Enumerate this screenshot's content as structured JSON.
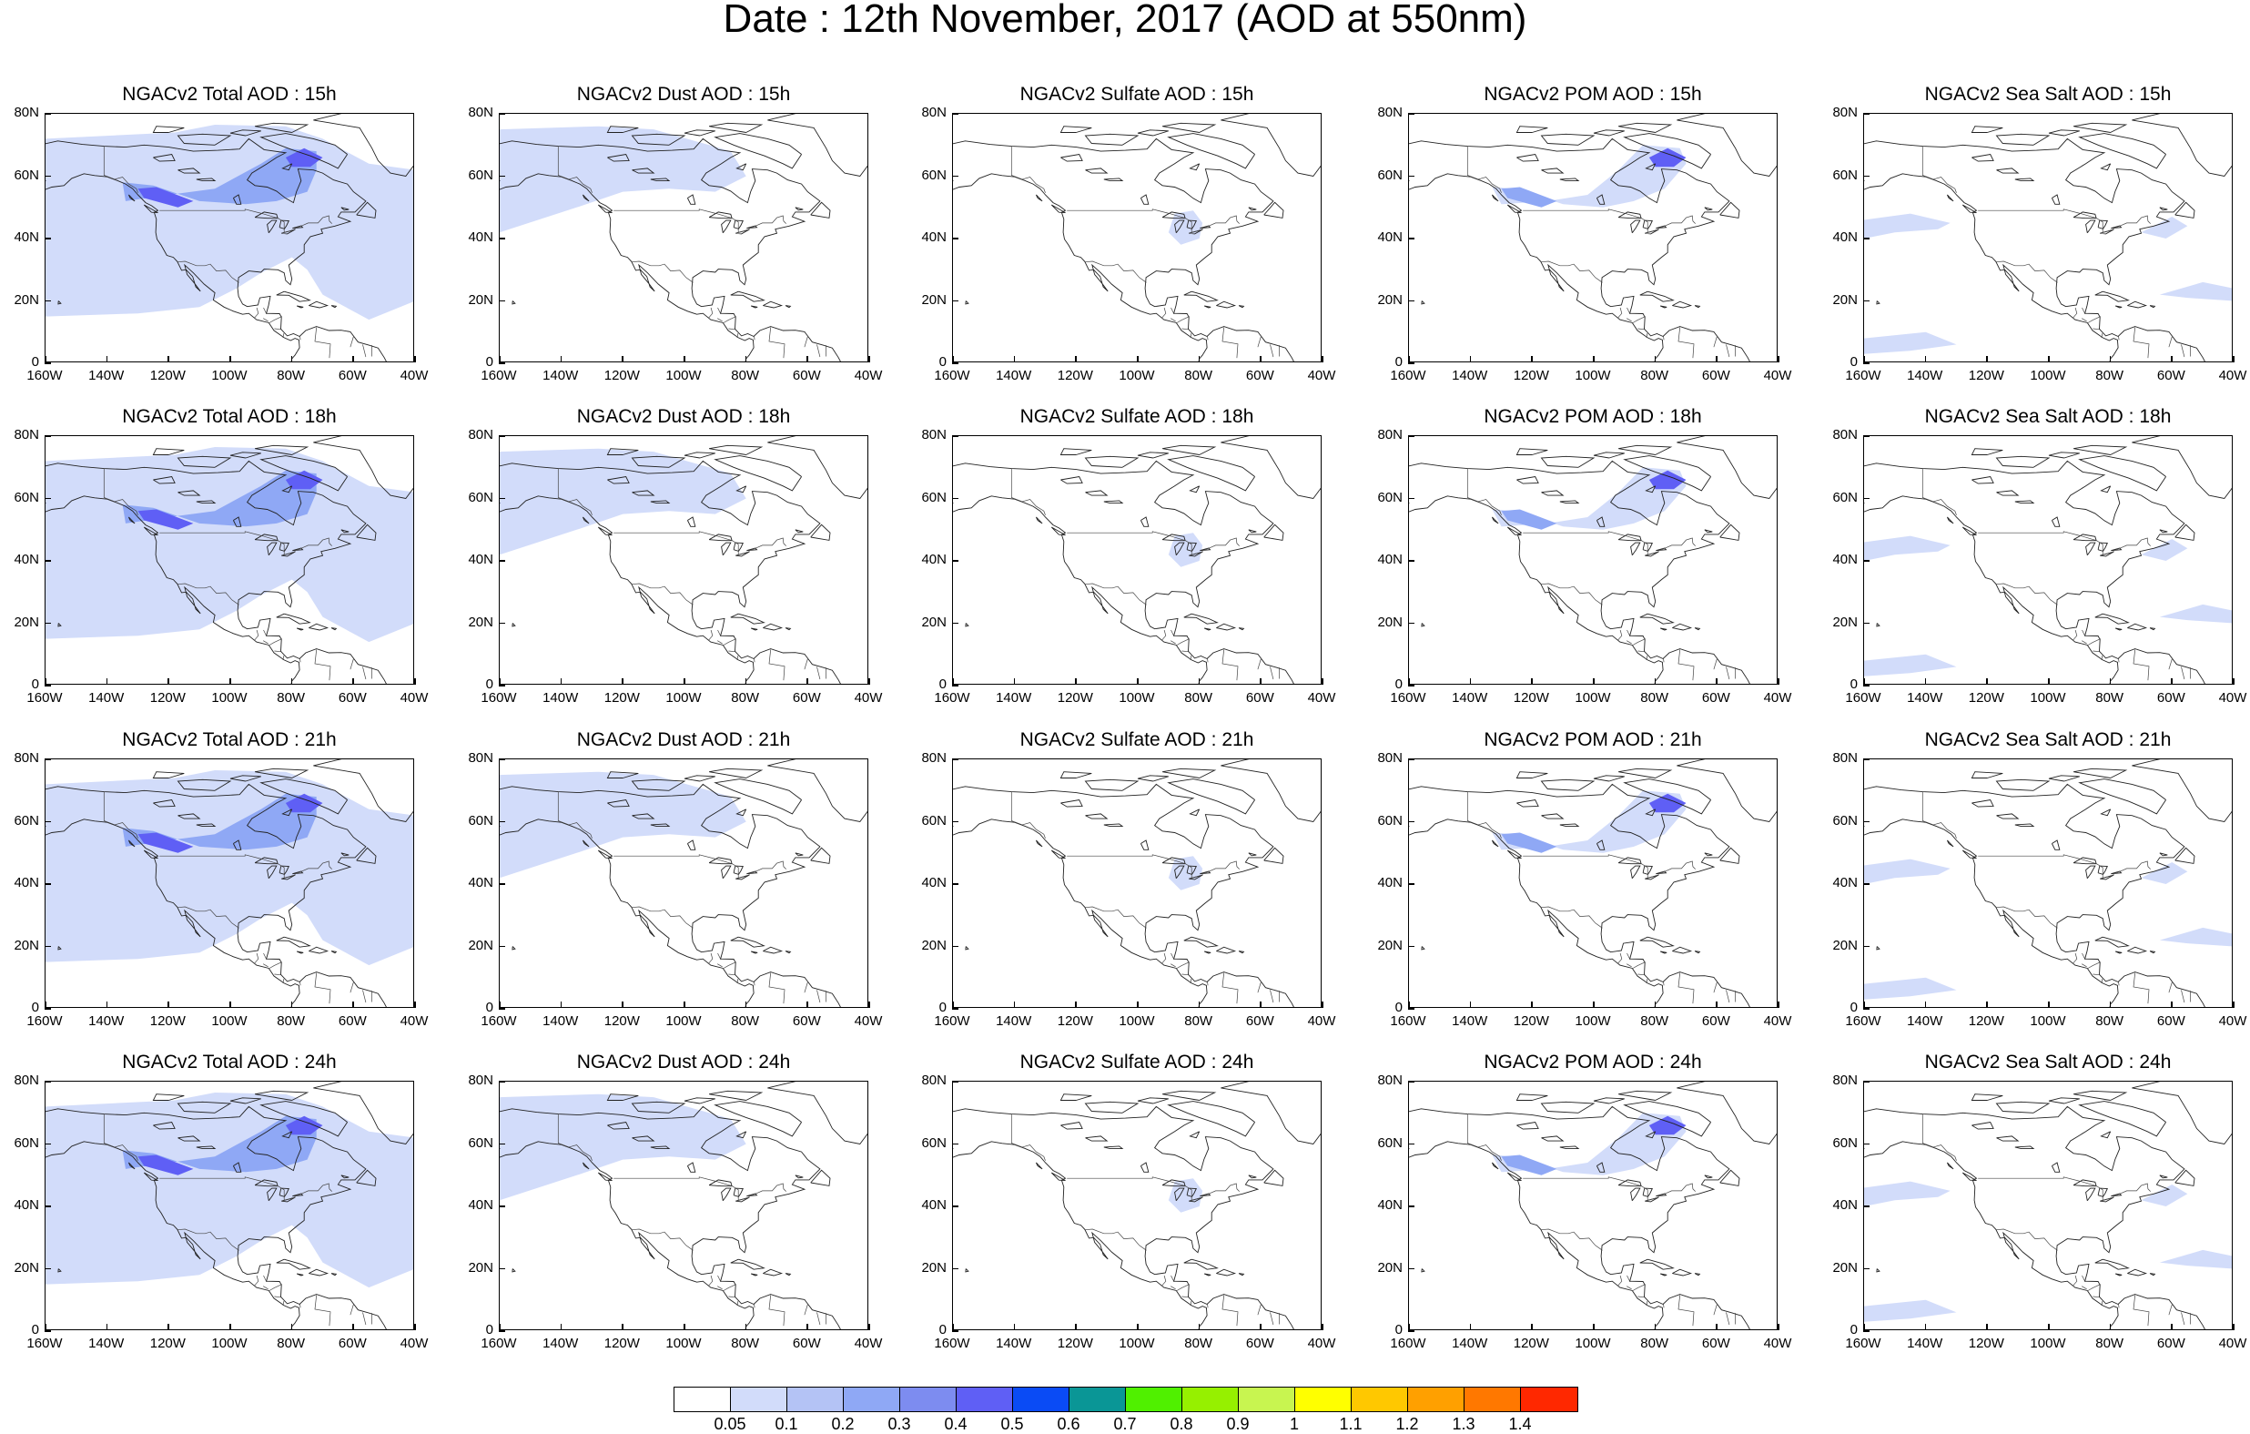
{
  "title": "Date : 12th November, 2017 (AOD at 550nm)",
  "y_tick_labels": [
    "80N",
    "60N",
    "40N",
    "20N",
    "0"
  ],
  "x_tick_labels": [
    "160W",
    "140W",
    "120W",
    "100W",
    "80W",
    "60W",
    "40W"
  ],
  "panels": [
    [
      "NGACv2 Total AOD : 15h",
      "NGACv2 Dust AOD : 15h",
      "NGACv2 Sulfate AOD : 15h",
      "NGACv2 POM AOD : 15h",
      "NGACv2 Sea Salt AOD : 15h"
    ],
    [
      "NGACv2 Total AOD : 18h",
      "NGACv2 Dust AOD : 18h",
      "NGACv2 Sulfate AOD : 18h",
      "NGACv2 POM AOD : 18h",
      "NGACv2 Sea Salt AOD : 18h"
    ],
    [
      "NGACv2 Total AOD : 21h",
      "NGACv2 Dust AOD : 21h",
      "NGACv2 Sulfate AOD : 21h",
      "NGACv2 POM AOD : 21h",
      "NGACv2 Sea Salt AOD : 21h"
    ],
    [
      "NGACv2 Total AOD : 24h",
      "NGACv2 Dust AOD : 24h",
      "NGACv2 Sulfate AOD : 24h",
      "NGACv2 POM AOD : 24h",
      "NGACv2 Sea Salt  AOD : 24h"
    ]
  ],
  "colorbar": {
    "labels": [
      "0.05",
      "0.1",
      "0.2",
      "0.3",
      "0.4",
      "0.5",
      "0.6",
      "0.7",
      "0.8",
      "0.9",
      "1",
      "1.1",
      "1.2",
      "1.3",
      "1.4"
    ],
    "colors": [
      "#ffffff",
      "#d2dcfa",
      "#b4c3f5",
      "#8fa8f5",
      "#7d8cf0",
      "#5f5ff5",
      "#0a4bf5",
      "#0a9696",
      "#50f000",
      "#96f000",
      "#c8f550",
      "#ffff00",
      "#ffc800",
      "#ffa000",
      "#ff7800",
      "#ff2800"
    ]
  },
  "map": {
    "lon_range": [
      -160,
      -40
    ],
    "lat_range": [
      0,
      80
    ],
    "fill_color": "#d2dcfa",
    "plume_color": "#8fa8f5",
    "hotspot_color": "#5f5ff5"
  }
}
